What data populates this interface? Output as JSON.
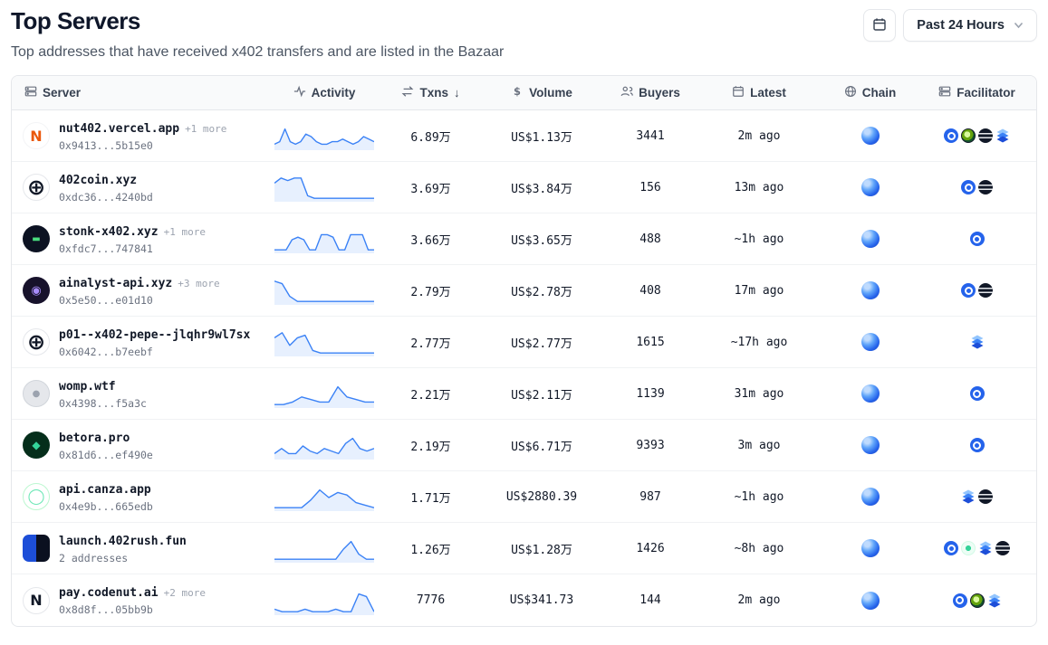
{
  "page": {
    "title": "Top Servers",
    "subtitle": "Top addresses that have received x402 transfers and are listed in the Bazaar"
  },
  "toolbar": {
    "calendar_icon": "calendar-icon",
    "range_label": "Past 24 Hours",
    "chevron_icon": "chevron-down-icon"
  },
  "colors": {
    "accent_blue": "#3b82f6",
    "spark_fill": "rgba(59,130,246,0.12)",
    "header_bg": "#f9fafb",
    "border": "#e5e7eb"
  },
  "table": {
    "headers": {
      "server": "Server",
      "activity": "Activity",
      "txns": "Txns",
      "txns_sort": "↓",
      "volume": "Volume",
      "buyers": "Buyers",
      "latest": "Latest",
      "chain": "Chain",
      "facilitator": "Facilitator"
    },
    "header_icons": [
      "server-icon",
      "activity-icon",
      "swap-arrows-icon",
      "dollar-icon",
      "buyers-icon",
      "calendar-icon",
      "globe-icon",
      "facilitator-icon"
    ],
    "rows": [
      {
        "name": "nut402.vercel.app",
        "more": "+1 more",
        "address": "0x9413...5b15e0",
        "spark": [
          2,
          3,
          8,
          3,
          2,
          3,
          6,
          5,
          3,
          2,
          2,
          3,
          3,
          4,
          3,
          2,
          3,
          5,
          4,
          3
        ],
        "txns": "6.89万",
        "volume": "US$1.13万",
        "buyers": "3441",
        "latest": "2m ago",
        "chain": "base",
        "facilitators": [
          "cdp",
          "globe",
          "lines",
          "layers"
        ],
        "avatar": {
          "bg": "#ffffff",
          "fg": "#ea580c",
          "glyph": "N",
          "border": "#f3f4f6",
          "fs": 16
        }
      },
      {
        "name": "402coin.xyz",
        "more": "",
        "address": "0xdc36...4240bd",
        "spark": [
          7,
          9,
          8,
          9,
          9,
          2,
          1,
          1,
          1,
          1,
          1,
          1,
          1,
          1,
          1,
          1
        ],
        "txns": "3.69万",
        "volume": "US$3.84万",
        "buyers": "156",
        "latest": "13m ago",
        "chain": "base",
        "facilitators": [
          "cdp",
          "lines"
        ],
        "avatar": {
          "bg": "#ffffff",
          "fg": "#111827",
          "glyph": "⊕",
          "border": "#e5e7eb",
          "fs": 24
        }
      },
      {
        "name": "stonk-x402.xyz",
        "more": "+1 more",
        "address": "0xfdc7...747841",
        "spark": [
          1,
          1,
          1,
          5,
          6,
          5,
          1,
          1,
          7,
          7,
          6,
          1,
          1,
          7,
          7,
          7,
          1,
          1
        ],
        "txns": "3.66万",
        "volume": "US$3.65万",
        "buyers": "488",
        "latest": "~1h ago",
        "chain": "base",
        "facilitators": [
          "cdp"
        ],
        "avatar": {
          "bg": "#0c1222",
          "fg": "#4ade80",
          "glyph": "▬",
          "fs": 10
        }
      },
      {
        "name": "ainalyst-api.xyz",
        "more": "+3 more",
        "address": "0x5e50...e01d10",
        "spark": [
          9,
          8,
          3,
          1,
          1,
          1,
          1,
          1,
          1,
          1,
          1,
          1,
          1,
          1
        ],
        "txns": "2.79万",
        "volume": "US$2.78万",
        "buyers": "408",
        "latest": "17m ago",
        "chain": "base",
        "facilitators": [
          "cdp",
          "lines"
        ],
        "avatar": {
          "bg": "#17122b",
          "fg": "#a78bfa",
          "glyph": "◉",
          "fs": 13
        }
      },
      {
        "name": "p01--x402-pepe--jlqhr9wl7sx",
        "more": "",
        "address": "0x6042...b7eebf",
        "spark": [
          7,
          9,
          4,
          7,
          8,
          2,
          1,
          1,
          1,
          1,
          1,
          1,
          1,
          1
        ],
        "txns": "2.77万",
        "volume": "US$2.77万",
        "buyers": "1615",
        "latest": "~17h ago",
        "chain": "base",
        "facilitators": [
          "layers"
        ],
        "avatar": {
          "bg": "#ffffff",
          "fg": "#111827",
          "glyph": "⊕",
          "border": "#e5e7eb",
          "fs": 24
        }
      },
      {
        "name": "womp.wtf",
        "more": "",
        "address": "0x4398...f5a3c",
        "spark": [
          1,
          1,
          2,
          4,
          3,
          2,
          2,
          8,
          4,
          3,
          2,
          2
        ],
        "txns": "2.21万",
        "volume": "US$2.11万",
        "buyers": "1139",
        "latest": "31m ago",
        "chain": "base",
        "facilitators": [
          "cdp"
        ],
        "avatar": {
          "bg": "#e5e7eb",
          "fg": "#9ca3af",
          "glyph": "●",
          "border": "#d1d5db",
          "fs": 10
        }
      },
      {
        "name": "betora.pro",
        "more": "",
        "address": "0x81d6...ef490e",
        "spark": [
          2,
          4,
          2,
          2,
          5,
          3,
          2,
          4,
          3,
          2,
          6,
          8,
          4,
          3,
          4
        ],
        "txns": "2.19万",
        "volume": "US$6.71万",
        "buyers": "9393",
        "latest": "3m ago",
        "chain": "base",
        "facilitators": [
          "cdp"
        ],
        "avatar": {
          "bg": "#052e1b",
          "fg": "#34d399",
          "glyph": "◆",
          "fs": 12
        }
      },
      {
        "name": "api.canza.app",
        "more": "",
        "address": "0x4e9b...665edb",
        "spark": [
          1,
          1,
          1,
          1,
          4,
          8,
          5,
          7,
          6,
          3,
          2,
          1
        ],
        "txns": "1.71万",
        "volume": "US$2880.39",
        "buyers": "987",
        "latest": "~1h ago",
        "chain": "base",
        "facilitators": [
          "layers",
          "lines"
        ],
        "avatar": {
          "bg": "#ffffff",
          "fg": "#6ee7b7",
          "glyph": "◯",
          "border": "#bbf7d0",
          "fs": 17
        }
      },
      {
        "name": "launch.402rush.fun",
        "more": "",
        "address": "2 addresses",
        "spark": [
          1,
          1,
          1,
          1,
          1,
          1,
          1,
          1,
          1,
          5,
          8,
          3,
          1,
          1
        ],
        "txns": "1.26万",
        "volume": "US$1.28万",
        "buyers": "1426",
        "latest": "~8h ago",
        "chain": "base",
        "facilitators": [
          "cdp",
          "mint",
          "layers",
          "lines"
        ],
        "avatar": {
          "bg": "#1d4ed8",
          "bg2": "#0b1020",
          "fg": "#ffffff",
          "glyph": "",
          "shape": "square"
        }
      },
      {
        "name": "pay.codenut.ai",
        "more": "+2 more",
        "address": "0x8d8f...05bb9b",
        "spark": [
          2,
          1,
          1,
          1,
          2,
          1,
          1,
          1,
          2,
          1,
          1,
          8,
          7,
          1
        ],
        "txns": "7776",
        "volume": "US$341.73",
        "buyers": "144",
        "latest": "2m ago",
        "chain": "base",
        "facilitators": [
          "cdp",
          "globe",
          "layers"
        ],
        "avatar": {
          "bg": "#ffffff",
          "fg": "#111827",
          "glyph": "N",
          "border": "#e5e7eb",
          "fs": 16
        }
      }
    ]
  }
}
